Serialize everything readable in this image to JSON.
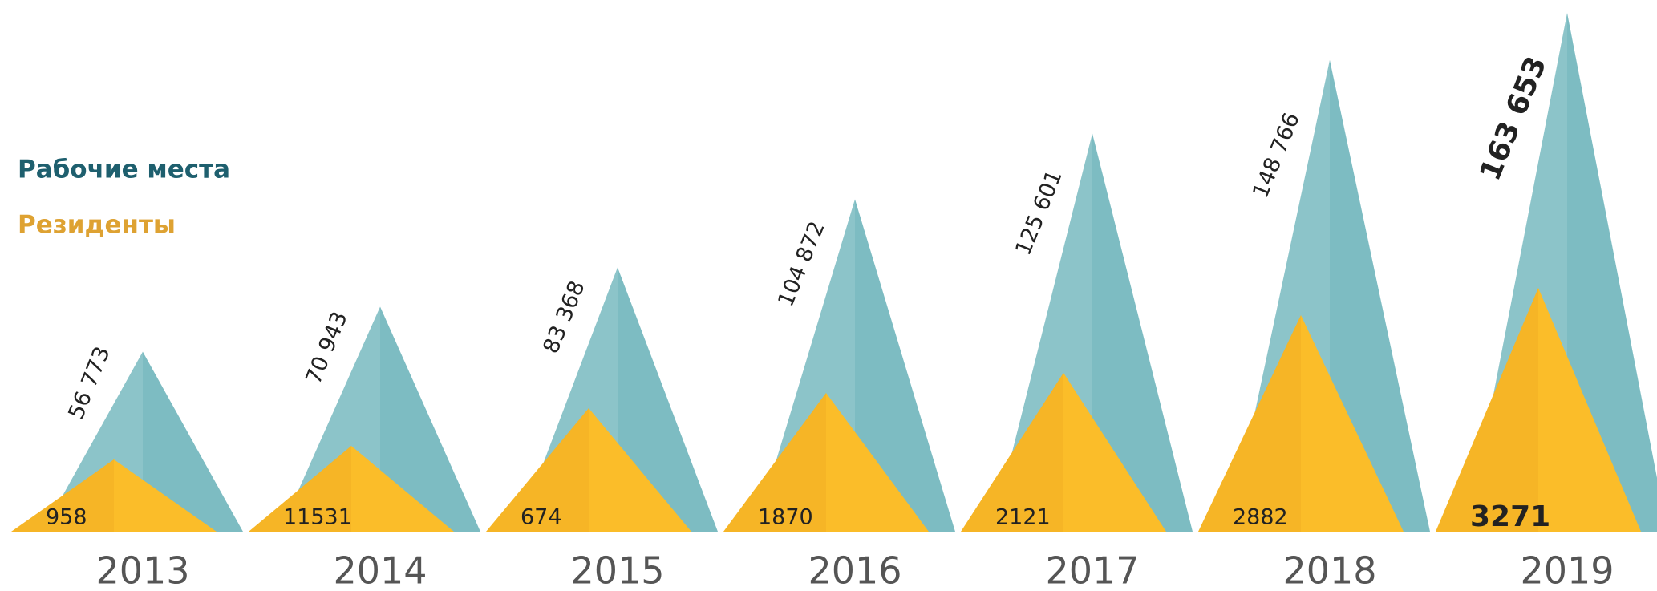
{
  "chart_data": {
    "type": "triangle",
    "categories": [
      "2013",
      "2014",
      "2015",
      "2016",
      "2017",
      "2018",
      "2019"
    ],
    "series": [
      {
        "name": "Рабочие места",
        "color": "#7dbcc2",
        "values": [
          56773,
          70943,
          83368,
          104872,
          125601,
          148766,
          163653
        ],
        "value_labels": [
          "56 773",
          "70 943",
          "83 368",
          "104 872",
          "125 601",
          "148 766",
          "163 653"
        ]
      },
      {
        "name": "Резиденты",
        "color": "#fbbd29",
        "values": [
          958,
          11531,
          674,
          1870,
          2121,
          2882,
          3271
        ]
      }
    ]
  }
}
